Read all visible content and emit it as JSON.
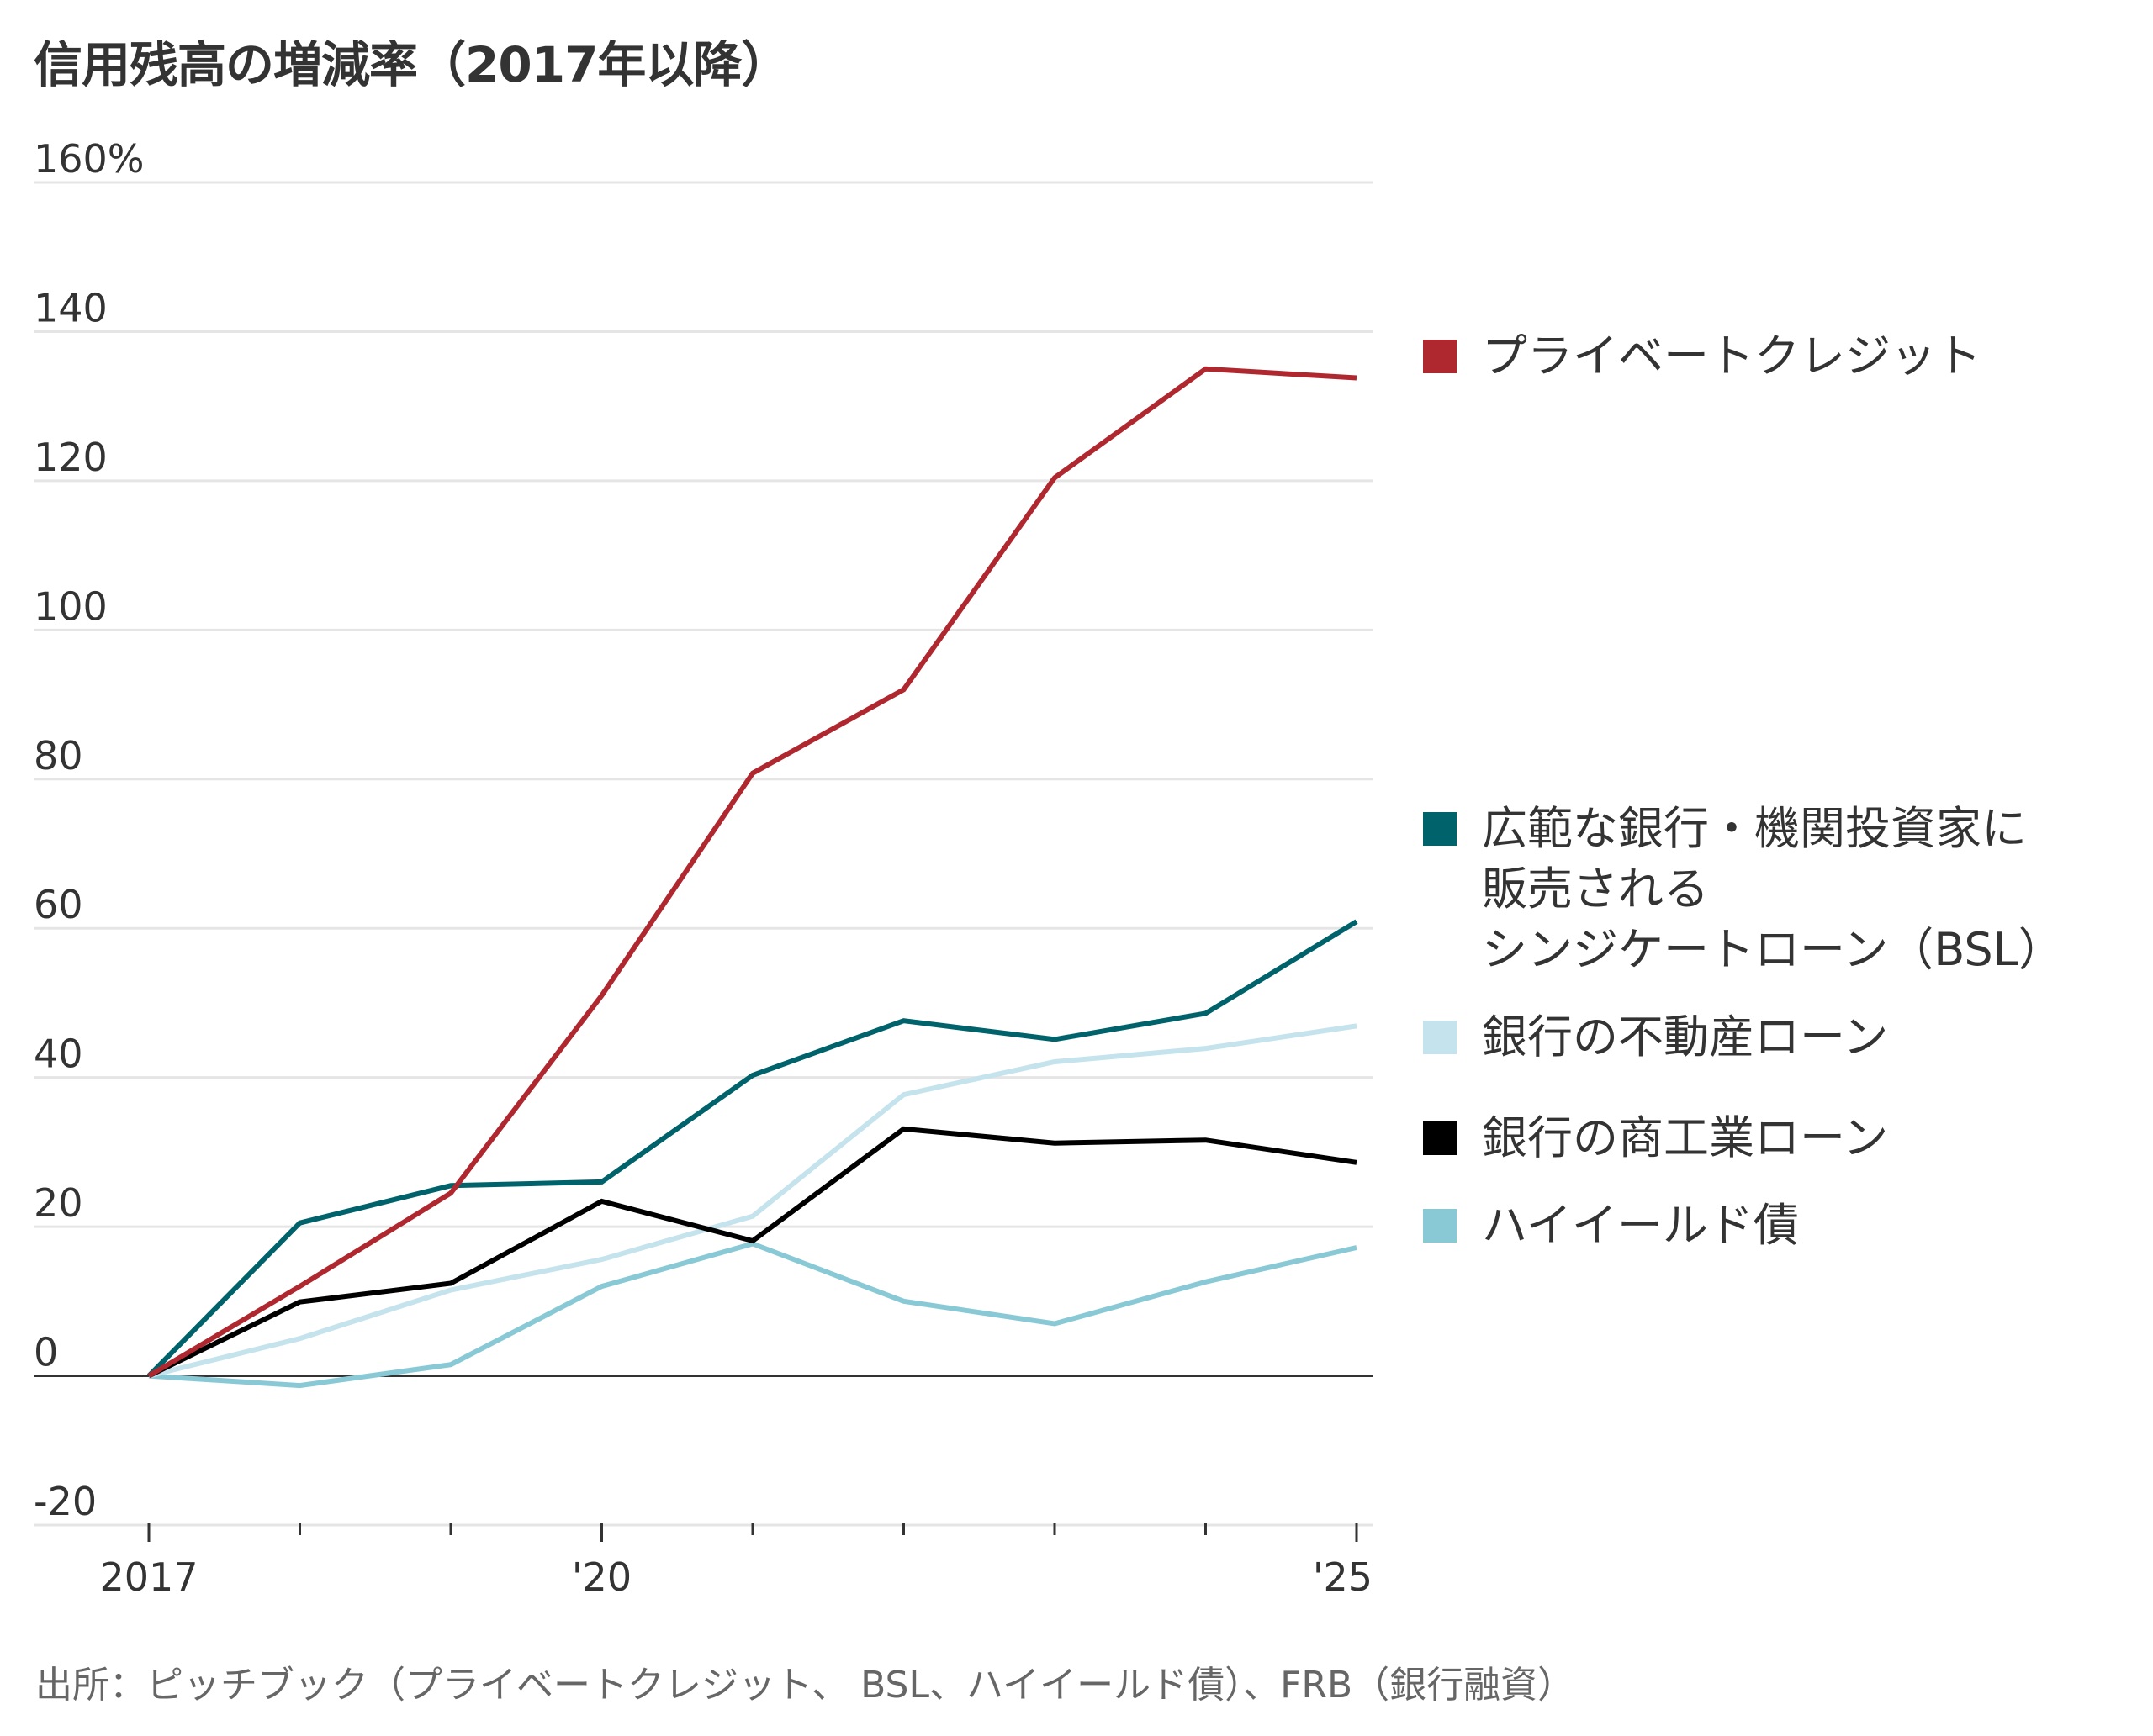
{
  "title": "信用残高の増減率（2017年以降）",
  "source": "出所：ピッチブック（プライベートクレジット、 BSL、ハイイールド債）、FRB（銀行融資）",
  "chart_data": {
    "type": "line",
    "title": "信用残高の増減率（2017年以降）",
    "xlabel": "",
    "ylabel": "",
    "x": [
      2017,
      2018,
      2019,
      2020,
      2021,
      2022,
      2023,
      2024,
      2025
    ],
    "x_tick_labels": [
      {
        "x": 2017,
        "label": "2017"
      },
      {
        "x": 2020,
        "label": "'20"
      },
      {
        "x": 2025,
        "label": "'25"
      }
    ],
    "ylim": [
      -20,
      160
    ],
    "y_ticks": [
      -20,
      0,
      20,
      40,
      60,
      80,
      100,
      120,
      140,
      160
    ],
    "y_tick_labels": [
      "-20",
      "0",
      "20",
      "40",
      "60",
      "80",
      "100",
      "120",
      "140",
      "160%"
    ],
    "grid": true,
    "legend_position": "right",
    "series": [
      {
        "name": "プライベートクレジット",
        "color": "#b0282f",
        "values": [
          0,
          12,
          24.5,
          51,
          80.8,
          92,
          120.4,
          135,
          133.8
        ]
      },
      {
        "name": "広範な銀行・機関投資家に\n販売される\nシンジケートローン（BSL）",
        "color": "#00626b",
        "values": [
          0,
          20.5,
          25.5,
          26,
          40.3,
          47.6,
          45.1,
          48.6,
          60.9
        ]
      },
      {
        "name": "銀行の不動産ローン",
        "color": "#c5e3ec",
        "values": [
          0,
          5,
          11.5,
          15.6,
          21.4,
          37.7,
          42.1,
          43.9,
          46.9
        ]
      },
      {
        "name": "銀行の商工業ローン",
        "color": "#000000",
        "values": [
          0,
          9.9,
          12.4,
          23.4,
          18.1,
          33.1,
          31.2,
          31.6,
          28.6
        ]
      },
      {
        "name": "ハイイールド債",
        "color": "#89c9d6",
        "values": [
          0,
          -1.3,
          1.5,
          12,
          17.7,
          10,
          7,
          12.6,
          17.2
        ]
      }
    ]
  }
}
